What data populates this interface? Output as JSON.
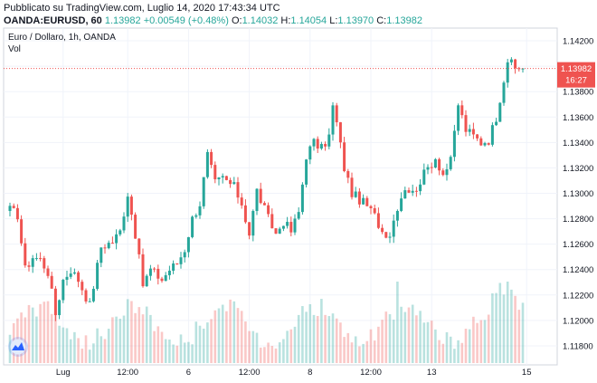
{
  "header": {
    "published": "Pubblicato su TradingView.com, Luglio 14, 2020 17:43:34 UTC",
    "symbol": "OANDA:EURUSD, 60",
    "last": "1.13982",
    "change": "+0.00549 (+0.48%)",
    "o_label": "O:",
    "o_value": "1.14032",
    "h_label": "H:",
    "h_value": "1.14054",
    "l_label": "L:",
    "l_value": "1.13970",
    "c_label": "C:",
    "c_value": "1.13982"
  },
  "legend": {
    "title": "Euro / Dollaro, 1h, OANDA",
    "vol": "Vol"
  },
  "price_tag": {
    "price": "1.13982",
    "countdown": "16:27"
  },
  "colors": {
    "up": "#26a69a",
    "down": "#ef5350",
    "last_line": "#ef5350"
  },
  "icons": {
    "logo": "tradingview-logo-icon"
  },
  "chart_data": {
    "type": "candlestick",
    "ylim": [
      1.1165,
      1.143
    ],
    "y_ticks": [
      "1.14200",
      "1.14000",
      "1.13800",
      "1.13600",
      "1.13400",
      "1.13200",
      "1.13000",
      "1.12800",
      "1.12600",
      "1.12400",
      "1.12200",
      "1.12000",
      "1.11800"
    ],
    "x_ticks": [
      {
        "label": "Lug",
        "bar": 14
      },
      {
        "label": "12:00",
        "bar": 31
      },
      {
        "label": "6",
        "bar": 47
      },
      {
        "label": "12:00",
        "bar": 63
      },
      {
        "label": "8",
        "bar": 79
      },
      {
        "label": "12:00",
        "bar": 95
      },
      {
        "label": "13",
        "bar": 111
      },
      {
        "label": "15",
        "bar": 136
      }
    ],
    "last_price": 1.13982,
    "anchors": [
      [
        0,
        1.1287
      ],
      [
        2,
        1.1283
      ],
      [
        4,
        1.124
      ],
      [
        6,
        1.125
      ],
      [
        8,
        1.1248
      ],
      [
        10,
        1.1238
      ],
      [
        12,
        1.1205
      ],
      [
        14,
        1.1232
      ],
      [
        16,
        1.124
      ],
      [
        18,
        1.1232
      ],
      [
        21,
        1.1212
      ],
      [
        24,
        1.1258
      ],
      [
        27,
        1.1262
      ],
      [
        29,
        1.127
      ],
      [
        31,
        1.13
      ],
      [
        33,
        1.1268
      ],
      [
        35,
        1.1228
      ],
      [
        37,
        1.124
      ],
      [
        40,
        1.1232
      ],
      [
        42,
        1.124
      ],
      [
        44,
        1.1245
      ],
      [
        46,
        1.1256
      ],
      [
        48,
        1.128
      ],
      [
        50,
        1.1292
      ],
      [
        52,
        1.133
      ],
      [
        54,
        1.1308
      ],
      [
        56,
        1.1312
      ],
      [
        59,
        1.1305
      ],
      [
        61,
        1.1292
      ],
      [
        63,
        1.1268
      ],
      [
        65,
        1.1302
      ],
      [
        68,
        1.128
      ],
      [
        70,
        1.1268
      ],
      [
        72,
        1.1278
      ],
      [
        74,
        1.127
      ],
      [
        76,
        1.1285
      ],
      [
        78,
        1.133
      ],
      [
        80,
        1.134
      ],
      [
        82,
        1.1335
      ],
      [
        84,
        1.1345
      ],
      [
        85,
        1.1368
      ],
      [
        86,
        1.1355
      ],
      [
        88,
        1.132
      ],
      [
        90,
        1.13
      ],
      [
        92,
        1.1295
      ],
      [
        94,
        1.129
      ],
      [
        96,
        1.1282
      ],
      [
        98,
        1.127
      ],
      [
        100,
        1.1268
      ],
      [
        102,
        1.129
      ],
      [
        104,
        1.1305
      ],
      [
        106,
        1.13
      ],
      [
        108,
        1.131
      ],
      [
        110,
        1.132
      ],
      [
        112,
        1.1328
      ],
      [
        114,
        1.1315
      ],
      [
        116,
        1.1325
      ],
      [
        118,
        1.137
      ],
      [
        120,
        1.135
      ],
      [
        122,
        1.1345
      ],
      [
        124,
        1.134
      ],
      [
        126,
        1.1342
      ],
      [
        128,
        1.136
      ],
      [
        130,
        1.139
      ],
      [
        131,
        1.1405
      ],
      [
        133,
        1.1398
      ]
    ]
  }
}
